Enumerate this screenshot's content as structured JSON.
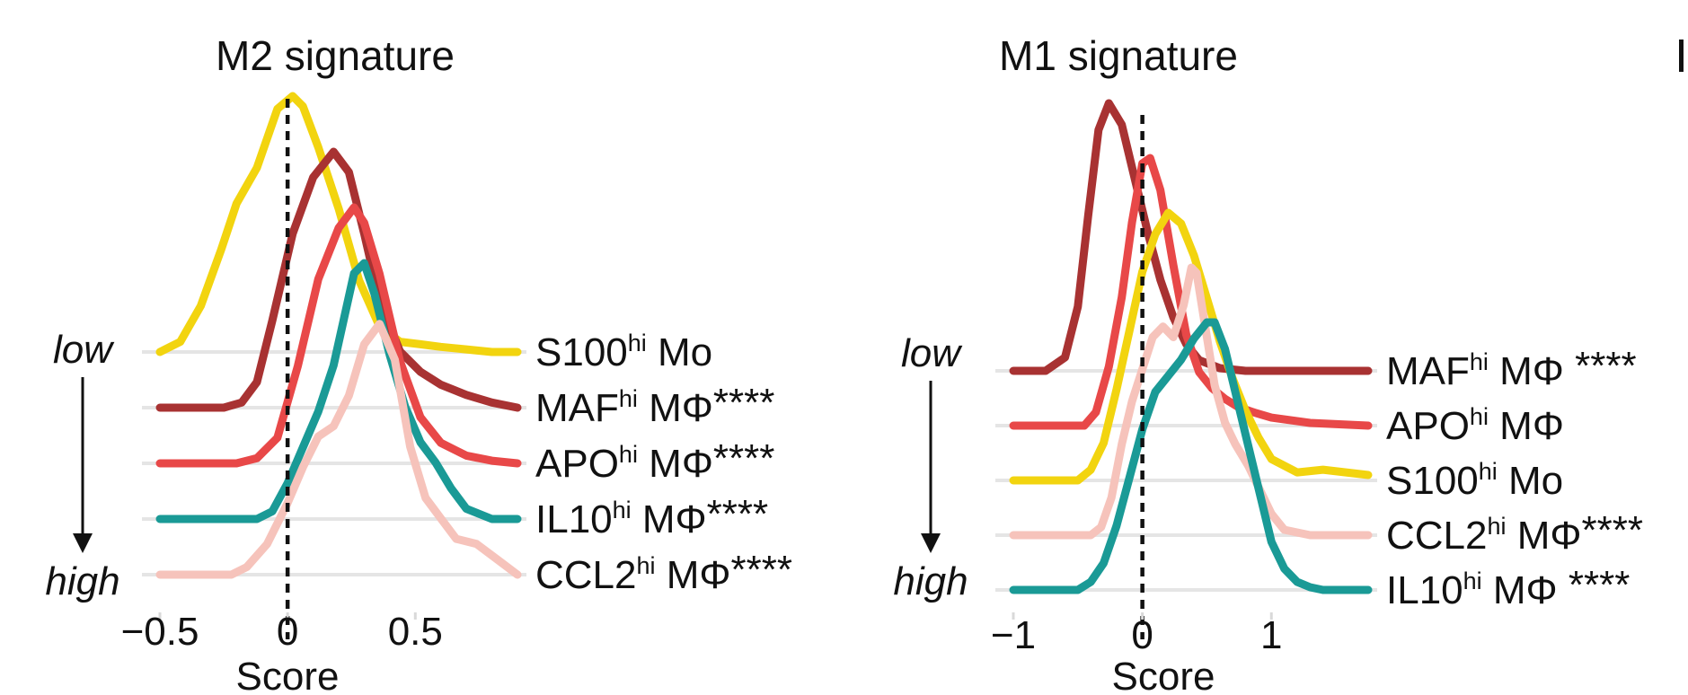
{
  "chart_data": [
    {
      "type": "ridgeline",
      "title": "M2 signature",
      "xlabel": "Score",
      "xlim": [
        -0.5,
        0.9
      ],
      "xticks": [
        {
          "value": -0.5,
          "label": "−0.5"
        },
        {
          "value": 0,
          "label": "0"
        },
        {
          "value": 0.5,
          "label": "0.5"
        }
      ],
      "reference_line": 0,
      "order_axis": {
        "top_label": "low",
        "bottom_label": "high"
      },
      "series": [
        {
          "name": "S100",
          "sup": "hi",
          "suffix": " Mo",
          "sig": "",
          "color": "#f2d40f",
          "x": [
            -0.5,
            -0.42,
            -0.34,
            -0.26,
            -0.2,
            -0.12,
            -0.04,
            0.02,
            0.06,
            0.12,
            0.2,
            0.28,
            0.36,
            0.44,
            0.52,
            0.6,
            0.7,
            0.8,
            0.9
          ],
          "y": [
            0,
            0.04,
            0.18,
            0.4,
            0.58,
            0.72,
            0.95,
            1.0,
            0.96,
            0.8,
            0.56,
            0.28,
            0.1,
            0.04,
            0.03,
            0.02,
            0.01,
            0,
            0
          ]
        },
        {
          "name": "MAF",
          "sup": "hi",
          "suffix": " MΦ",
          "sig": "****",
          "color": "#a83232",
          "x": [
            -0.5,
            -0.25,
            -0.18,
            -0.12,
            -0.06,
            0.02,
            0.1,
            0.18,
            0.24,
            0.3,
            0.36,
            0.44,
            0.52,
            0.6,
            0.7,
            0.8,
            0.9
          ],
          "y": [
            0,
            0,
            0.02,
            0.1,
            0.34,
            0.68,
            0.9,
            1.0,
            0.92,
            0.68,
            0.42,
            0.22,
            0.14,
            0.09,
            0.05,
            0.02,
            0
          ]
        },
        {
          "name": "APO",
          "sup": "hi",
          "suffix": " MΦ",
          "sig": "****",
          "color": "#e84848",
          "x": [
            -0.5,
            -0.2,
            -0.12,
            -0.04,
            0.04,
            0.12,
            0.2,
            0.26,
            0.3,
            0.36,
            0.44,
            0.52,
            0.6,
            0.7,
            0.8,
            0.9
          ],
          "y": [
            0,
            0,
            0.02,
            0.1,
            0.38,
            0.72,
            0.92,
            1.0,
            0.94,
            0.74,
            0.4,
            0.18,
            0.08,
            0.03,
            0.01,
            0
          ]
        },
        {
          "name": "IL10",
          "sup": "hi",
          "suffix": " MΦ",
          "sig": "****",
          "color": "#1a9a96",
          "x": [
            -0.5,
            -0.12,
            -0.06,
            0.0,
            0.06,
            0.12,
            0.18,
            0.22,
            0.26,
            0.3,
            0.34,
            0.4,
            0.46,
            0.52,
            0.58,
            0.64,
            0.7,
            0.8,
            0.9
          ],
          "y": [
            0,
            0,
            0.03,
            0.14,
            0.28,
            0.42,
            0.6,
            0.78,
            0.96,
            1.0,
            0.88,
            0.64,
            0.44,
            0.3,
            0.22,
            0.12,
            0.04,
            0,
            0
          ]
        },
        {
          "name": "CCL2",
          "sup": "hi",
          "suffix": " MΦ",
          "sig": "****",
          "color": "#f6c3bb",
          "x": [
            -0.5,
            -0.22,
            -0.16,
            -0.08,
            0.0,
            0.06,
            0.12,
            0.18,
            0.24,
            0.3,
            0.36,
            0.42,
            0.48,
            0.54,
            0.6,
            0.66,
            0.74,
            0.82,
            0.9
          ],
          "y": [
            0,
            0,
            0.03,
            0.12,
            0.28,
            0.42,
            0.54,
            0.58,
            0.7,
            0.9,
            0.98,
            0.84,
            0.5,
            0.3,
            0.22,
            0.14,
            0.12,
            0.06,
            0
          ]
        }
      ]
    },
    {
      "type": "ridgeline",
      "title": "M1 signature",
      "xlabel": "Score",
      "xlim": [
        -1.0,
        1.75
      ],
      "xticks": [
        {
          "value": -1,
          "label": "−1"
        },
        {
          "value": 0,
          "label": "0"
        },
        {
          "value": 1,
          "label": "1"
        }
      ],
      "reference_line": 0,
      "order_axis": {
        "top_label": "low",
        "bottom_label": "high"
      },
      "series": [
        {
          "name": "MAF",
          "sup": "hi",
          "suffix": " MΦ",
          "sig": " ****",
          "color": "#a83232",
          "x": [
            -1.0,
            -0.75,
            -0.6,
            -0.5,
            -0.42,
            -0.34,
            -0.26,
            -0.16,
            -0.06,
            0.04,
            0.14,
            0.24,
            0.34,
            0.44,
            0.6,
            0.8,
            1.2,
            1.75
          ],
          "y": [
            0,
            0,
            0.05,
            0.24,
            0.58,
            0.9,
            1.0,
            0.92,
            0.72,
            0.52,
            0.34,
            0.2,
            0.1,
            0.04,
            0.01,
            0,
            0,
            0
          ]
        },
        {
          "name": "APO",
          "sup": "hi",
          "suffix": " MΦ",
          "sig": "",
          "color": "#e84848",
          "x": [
            -1.0,
            -0.45,
            -0.36,
            -0.26,
            -0.16,
            -0.08,
            0.0,
            0.06,
            0.14,
            0.24,
            0.34,
            0.44,
            0.54,
            0.64,
            0.74,
            0.86,
            1.0,
            1.3,
            1.75
          ],
          "y": [
            0,
            0,
            0.05,
            0.22,
            0.48,
            0.76,
            0.98,
            1.0,
            0.88,
            0.6,
            0.34,
            0.2,
            0.14,
            0.1,
            0.07,
            0.05,
            0.03,
            0.01,
            0
          ]
        },
        {
          "name": "S100",
          "sup": "hi",
          "suffix": " Mo",
          "sig": "",
          "color": "#f2d40f",
          "x": [
            -1.0,
            -0.5,
            -0.4,
            -0.3,
            -0.2,
            -0.1,
            0.0,
            0.1,
            0.2,
            0.3,
            0.4,
            0.5,
            0.6,
            0.7,
            0.8,
            0.9,
            1.0,
            1.2,
            1.4,
            1.75
          ],
          "y": [
            0,
            0,
            0.04,
            0.14,
            0.34,
            0.56,
            0.78,
            0.92,
            1.0,
            0.96,
            0.84,
            0.68,
            0.52,
            0.38,
            0.26,
            0.16,
            0.08,
            0.03,
            0.04,
            0.02
          ]
        },
        {
          "name": "CCL2",
          "sup": "hi",
          "suffix": " MΦ",
          "sig": "****",
          "color": "#f6c3bb",
          "x": [
            -1.0,
            -0.4,
            -0.32,
            -0.24,
            -0.16,
            -0.08,
            0.0,
            0.08,
            0.16,
            0.24,
            0.32,
            0.38,
            0.42,
            0.48,
            0.56,
            0.64,
            0.72,
            0.82,
            0.92,
            1.0,
            1.1,
            1.3,
            1.75
          ],
          "y": [
            0,
            0,
            0.03,
            0.14,
            0.34,
            0.5,
            0.62,
            0.74,
            0.78,
            0.74,
            0.86,
            1.0,
            0.98,
            0.8,
            0.56,
            0.42,
            0.34,
            0.26,
            0.16,
            0.08,
            0.02,
            0,
            0
          ]
        },
        {
          "name": "IL10",
          "sup": "hi",
          "suffix": " MΦ",
          "sig": " ****",
          "color": "#1a9a96",
          "x": [
            -1.0,
            -0.5,
            -0.4,
            -0.3,
            -0.2,
            -0.1,
            0.0,
            0.1,
            0.2,
            0.3,
            0.4,
            0.5,
            0.56,
            0.64,
            0.72,
            0.82,
            0.92,
            1.0,
            1.1,
            1.2,
            1.3,
            1.4,
            1.5,
            1.75
          ],
          "y": [
            0,
            0,
            0.03,
            0.1,
            0.24,
            0.42,
            0.6,
            0.74,
            0.8,
            0.86,
            0.94,
            1.0,
            1.0,
            0.9,
            0.74,
            0.54,
            0.34,
            0.18,
            0.08,
            0.03,
            0.01,
            0,
            0,
            0
          ]
        }
      ]
    }
  ]
}
